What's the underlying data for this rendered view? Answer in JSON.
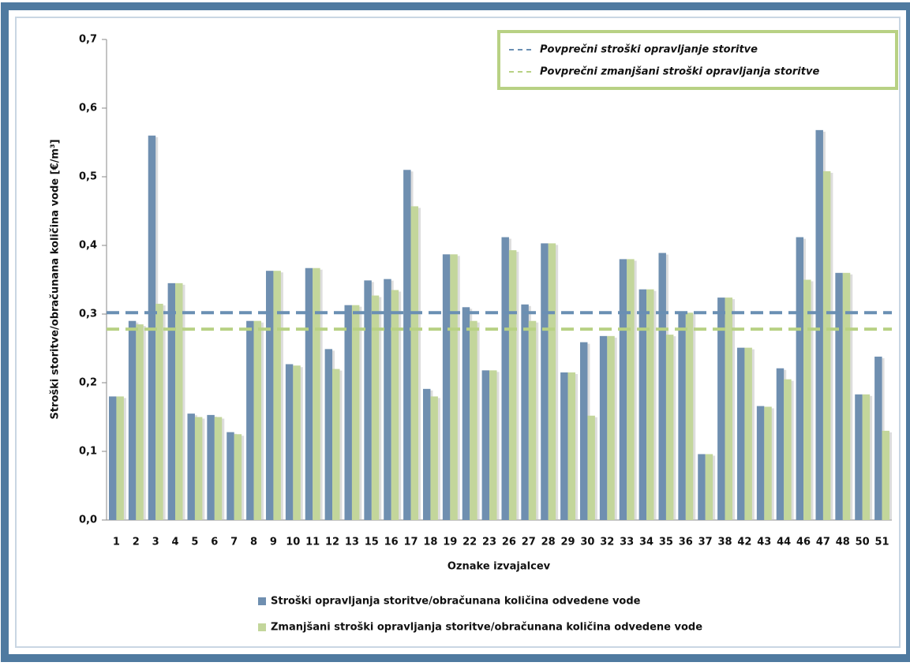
{
  "chart_data": {
    "type": "bar",
    "y_label": "Stroški storitve/obračunana količina vode [€/m³]",
    "x_label": "Oznake izvajalcev",
    "categories": [
      "1",
      "2",
      "3",
      "4",
      "5",
      "6",
      "7",
      "8",
      "9",
      "10",
      "11",
      "12",
      "13",
      "15",
      "16",
      "17",
      "18",
      "19",
      "22",
      "23",
      "26",
      "27",
      "28",
      "29",
      "30",
      "32",
      "33",
      "34",
      "35",
      "36",
      "37",
      "38",
      "42",
      "43",
      "44",
      "46",
      "47",
      "48",
      "50",
      "51"
    ],
    "series": [
      {
        "name": "Stroški opravljanja storitve/obračunana količina odvedene vode",
        "color": "#6f8fb0",
        "values": [
          0.18,
          0.29,
          0.56,
          0.345,
          0.155,
          0.153,
          0.128,
          0.29,
          0.363,
          0.227,
          0.367,
          0.249,
          0.313,
          0.349,
          0.351,
          0.51,
          0.191,
          0.387,
          0.31,
          0.218,
          0.412,
          0.314,
          0.403,
          0.215,
          0.259,
          0.268,
          0.38,
          0.336,
          0.389,
          0.302,
          0.096,
          0.324,
          0.251,
          0.166,
          0.221,
          0.412,
          0.568,
          0.36,
          0.183,
          0.238
        ]
      },
      {
        "name": "Zmanjšani stroški opravljanja storitve/obračunana količina odvedene vode",
        "color": "#c3d69b",
        "values": [
          0.18,
          0.285,
          0.315,
          0.345,
          0.15,
          0.15,
          0.125,
          0.29,
          0.363,
          0.225,
          0.367,
          0.22,
          0.313,
          0.327,
          0.335,
          0.457,
          0.18,
          0.387,
          0.29,
          0.218,
          0.393,
          0.29,
          0.403,
          0.215,
          0.152,
          0.268,
          0.38,
          0.336,
          0.27,
          0.302,
          0.096,
          0.324,
          0.251,
          0.165,
          0.205,
          0.35,
          0.508,
          0.36,
          0.183,
          0.13
        ]
      }
    ],
    "reference_lines": [
      {
        "name": "Povprečni stroški opravljanje storitve",
        "value": 0.302,
        "color": "#6a8fb3"
      },
      {
        "name": "Povprečni zmanjšani stroški opravljanja storitve",
        "value": 0.278,
        "color": "#b8d184"
      }
    ],
    "ylim": [
      0,
      0.7
    ],
    "yticks": [
      {
        "value": 0,
        "label": "0,0"
      },
      {
        "value": 0.1,
        "label": "0,1"
      },
      {
        "value": 0.2,
        "label": "0,2"
      },
      {
        "value": 0.3,
        "label": "0,3"
      },
      {
        "value": 0.4,
        "label": "0,4"
      },
      {
        "value": 0.5,
        "label": "0,5"
      },
      {
        "value": 0.6,
        "label": "0,6"
      },
      {
        "value": 0.7,
        "label": "0,7"
      }
    ]
  }
}
